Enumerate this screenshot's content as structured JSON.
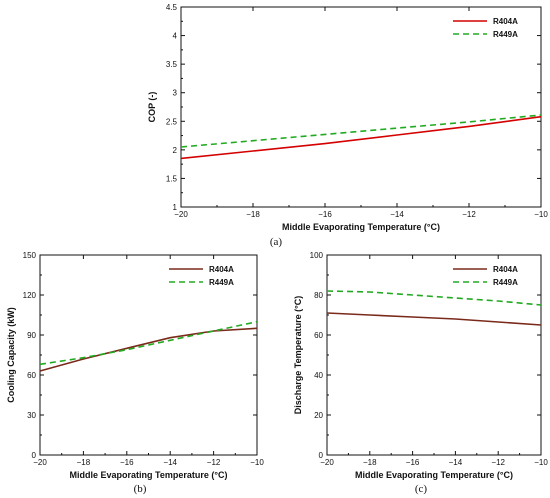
{
  "chart_data": [
    {
      "id": "a",
      "type": "line",
      "caption": "(a)",
      "xlabel": "Middle Evaporating Temperature (°C)",
      "ylabel": "COP (-)",
      "xlim": [
        -20,
        -10
      ],
      "ylim": [
        1,
        4.5
      ],
      "xticks": [
        -20,
        -18,
        -16,
        -14,
        -12,
        -10
      ],
      "xtick_labels": [
        "−20",
        "−18",
        "−16",
        "−14",
        "−12",
        "−10"
      ],
      "yticks": [
        1,
        1.5,
        2,
        2.5,
        3,
        3.5,
        4,
        4.5
      ],
      "ytick_labels": [
        "1",
        "1.5",
        "2",
        "2.5",
        "3",
        "3.5",
        "4",
        "4.5"
      ],
      "legend_position": "top-right",
      "series": [
        {
          "name": "R404A",
          "color": "#d40000",
          "style": "solid",
          "x": [
            -20,
            -18,
            -16,
            -14,
            -12,
            -10
          ],
          "values": [
            1.85,
            1.98,
            2.11,
            2.26,
            2.41,
            2.58
          ]
        },
        {
          "name": "R449A",
          "color": "#22aa22",
          "style": "dashed",
          "x": [
            -20,
            -18,
            -16,
            -14,
            -12,
            -10
          ],
          "values": [
            2.05,
            2.16,
            2.27,
            2.38,
            2.49,
            2.61
          ]
        }
      ]
    },
    {
      "id": "b",
      "type": "line",
      "caption": "(b)",
      "xlabel": "Middle Evaporating Temperature (°C)",
      "ylabel": "Cooling Capacity (kW)",
      "xlim": [
        -20,
        -10
      ],
      "ylim": [
        0,
        150
      ],
      "xticks": [
        -20,
        -18,
        -16,
        -14,
        -12,
        -10
      ],
      "xtick_labels": [
        "−20",
        "−18",
        "−16",
        "−14",
        "−12",
        "−10"
      ],
      "yticks": [
        0,
        30,
        60,
        90,
        120,
        150
      ],
      "ytick_labels": [
        "0",
        "30",
        "60",
        "90",
        "120",
        "150"
      ],
      "legend_position": "top-right",
      "series": [
        {
          "name": "R404A",
          "color": "#7a2a1a",
          "style": "solid",
          "x": [
            -20,
            -18,
            -16,
            -14,
            -12,
            -10
          ],
          "values": [
            63,
            72,
            80,
            88,
            93,
            95
          ]
        },
        {
          "name": "R449A",
          "color": "#22aa22",
          "style": "dashed",
          "x": [
            -20,
            -18,
            -16,
            -14,
            -12,
            -10
          ],
          "values": [
            68,
            73,
            79,
            86,
            93,
            100
          ]
        }
      ]
    },
    {
      "id": "c",
      "type": "line",
      "caption": "(c)",
      "xlabel": "Middle Evaporating Temperature (°C)",
      "ylabel": "Discharge Temperature (°C)",
      "xlim": [
        -20,
        -10
      ],
      "ylim": [
        0,
        100
      ],
      "xticks": [
        -20,
        -18,
        -16,
        -14,
        -12,
        -10
      ],
      "xtick_labels": [
        "−20",
        "−18",
        "−16",
        "−14",
        "−12",
        "−10"
      ],
      "yticks": [
        0,
        20,
        40,
        60,
        80,
        100
      ],
      "ytick_labels": [
        "0",
        "20",
        "40",
        "60",
        "80",
        "100"
      ],
      "legend_position": "top-right",
      "series": [
        {
          "name": "R404A",
          "color": "#7a2a1a",
          "style": "solid",
          "x": [
            -20,
            -18,
            -16,
            -14,
            -12,
            -10
          ],
          "values": [
            71,
            70,
            69,
            68,
            66.5,
            65
          ]
        },
        {
          "name": "R449A",
          "color": "#22aa22",
          "style": "dashed",
          "x": [
            -20,
            -18,
            -16,
            -14,
            -12,
            -10
          ],
          "values": [
            82,
            81.5,
            80,
            78.5,
            77,
            75
          ]
        }
      ]
    }
  ]
}
